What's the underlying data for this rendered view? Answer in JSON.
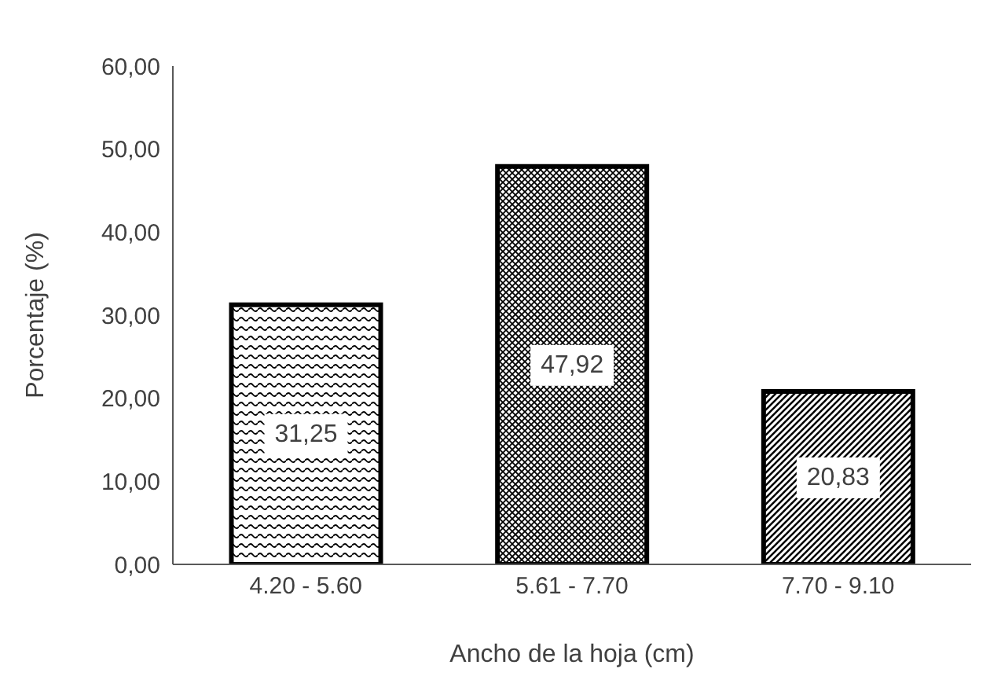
{
  "chart_data": {
    "type": "bar",
    "xlabel": "Ancho de la hoja (cm)",
    "ylabel": "Porcentaje (%)",
    "categories": [
      "4.20 - 5.60",
      "5.61 - 7.70",
      "7.70 - 9.10"
    ],
    "values": [
      31.25,
      47.92,
      20.83
    ],
    "colors": [
      "#000000",
      "#000000",
      "#000000"
    ],
    "value_labels": [
      "31,25",
      "47,92",
      "20,83"
    ],
    "ylim": [
      0,
      60
    ],
    "yticks": [
      {
        "value": 0,
        "label": "0,00"
      },
      {
        "value": 10,
        "label": "10,00"
      },
      {
        "value": 20,
        "label": "20,00"
      },
      {
        "value": 30,
        "label": "30,00"
      },
      {
        "value": 40,
        "label": "40,00"
      },
      {
        "value": 50,
        "label": "50,00"
      },
      {
        "value": 60,
        "label": "60,00"
      }
    ],
    "grid": false,
    "legend": false
  }
}
